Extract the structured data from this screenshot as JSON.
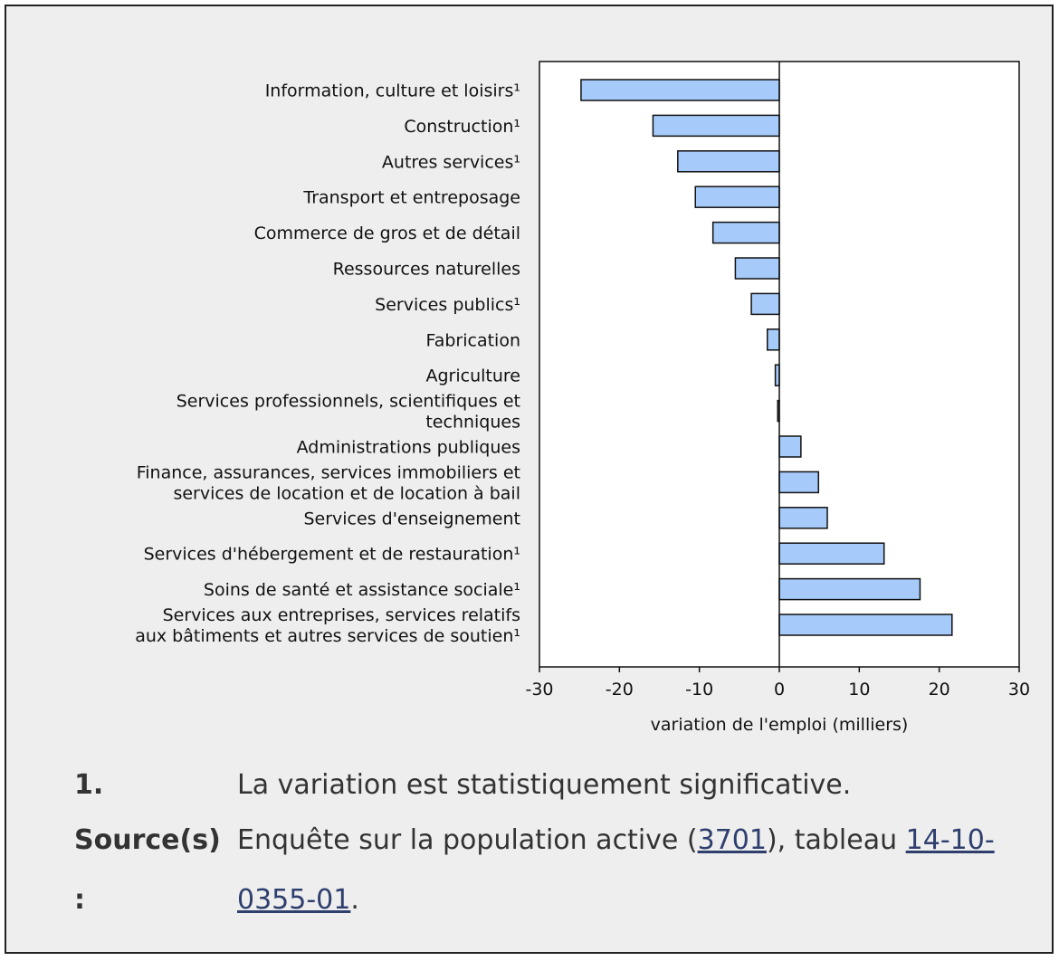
{
  "chart_data": {
    "type": "bar",
    "orientation": "horizontal",
    "categories": [
      "Information, culture et loisirs¹",
      "Construction¹",
      "Autres services¹",
      "Transport et entreposage",
      "Commerce de gros et de détail",
      "Ressources naturelles",
      "Services publics¹",
      "Fabrication",
      "Agriculture",
      "Services professionnels, scientifiques et techniques",
      "Administrations publiques",
      "Finance, assurances, services immobiliers et services de location et de location à bail",
      "Services d'enseignement",
      "Services d'hébergement et de restauration¹",
      "Soins de santé et assistance sociale¹",
      "Services aux entreprises, services relatifs aux bâtiments et autres services de soutien¹"
    ],
    "category_lines": [
      [
        "Information, culture et loisirs¹"
      ],
      [
        "Construction¹"
      ],
      [
        "Autres services¹"
      ],
      [
        "Transport et entreposage"
      ],
      [
        "Commerce de gros et de détail"
      ],
      [
        "Ressources naturelles"
      ],
      [
        "Services publics¹"
      ],
      [
        "Fabrication"
      ],
      [
        "Agriculture"
      ],
      [
        "Services professionnels, scientifiques et",
        "techniques"
      ],
      [
        "Administrations publiques"
      ],
      [
        "Finance, assurances, services immobiliers et",
        "services de location et de location à bail"
      ],
      [
        "Services d'enseignement"
      ],
      [
        "Services d'hébergement et de restauration¹"
      ],
      [
        "Soins de santé et assistance sociale¹"
      ],
      [
        "Services aux entreprises, services relatifs",
        "aux bâtiments et autres services de soutien¹"
      ]
    ],
    "values": [
      -24.8,
      -15.8,
      -12.7,
      -10.5,
      -8.3,
      -5.5,
      -3.5,
      -1.5,
      -0.5,
      -0.2,
      2.7,
      4.9,
      6.0,
      13.1,
      17.6,
      21.6
    ],
    "xlabel": "variation de l'emploi (milliers)",
    "xlim": [
      -30,
      30
    ],
    "xticks": [
      -30,
      -20,
      -10,
      0,
      10,
      20,
      30
    ],
    "bar_color": "#a6cbfa",
    "bar_edge_color": "#111111",
    "grid": false
  },
  "footnotes": {
    "note_key": "1.",
    "note_text": "La variation est statistiquement significative.",
    "source_key": "Source(s) :",
    "source_prefix": "Enquête sur la population active (",
    "source_link1": "3701",
    "source_middle": "), tableau ",
    "source_link2": "14-10-0355-01",
    "source_suffix": "."
  }
}
